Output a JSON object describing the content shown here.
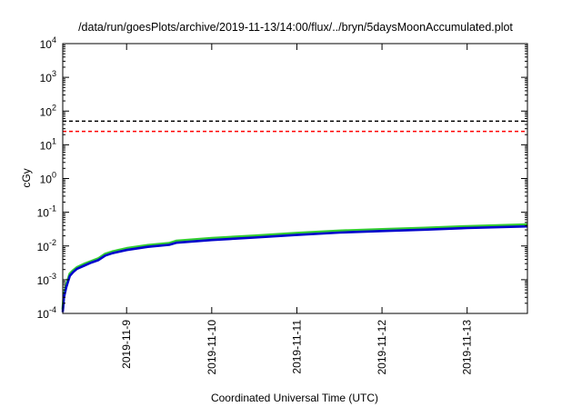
{
  "chart_data": {
    "type": "line",
    "title": "/data/run/goesPlots/archive/2019-11-13/14:00/flux/../bryn/5daysMoonAccumulated.plot",
    "xlabel": "Coordinated Universal Time (UTC)",
    "ylabel": "cGy",
    "yscale": "log",
    "ylim": [
      0.0001,
      10000
    ],
    "xlim": [
      "2019-11-08T06:00",
      "2019-11-13T17:00"
    ],
    "y_ticks": [
      {
        "value": 0.0001,
        "mant": "10",
        "exp": "-4"
      },
      {
        "value": 0.001,
        "mant": "10",
        "exp": "-3"
      },
      {
        "value": 0.01,
        "mant": "10",
        "exp": "-2"
      },
      {
        "value": 0.1,
        "mant": "10",
        "exp": "-1"
      },
      {
        "value": 1,
        "mant": "10",
        "exp": "0"
      },
      {
        "value": 10,
        "mant": "10",
        "exp": "1"
      },
      {
        "value": 100,
        "mant": "10",
        "exp": "2"
      },
      {
        "value": 1000,
        "mant": "10",
        "exp": "3"
      },
      {
        "value": 10000,
        "mant": "10",
        "exp": "4"
      }
    ],
    "x_ticks": [
      {
        "value": "2019-11-09",
        "label": "2019-11-9"
      },
      {
        "value": "2019-11-10",
        "label": "2019-11-10"
      },
      {
        "value": "2019-11-11",
        "label": "2019-11-11"
      },
      {
        "value": "2019-11-12",
        "label": "2019-11-12"
      },
      {
        "value": "2019-11-13",
        "label": "2019-11-13"
      }
    ],
    "reference_lines": [
      {
        "y": 50,
        "color": "#000000",
        "style": "dashed"
      },
      {
        "y": 25,
        "color": "#ff0000",
        "style": "dashed"
      }
    ],
    "grid": false,
    "series": [
      {
        "color": "#33cc33",
        "x": [
          "2019-11-08T06:00",
          "2019-11-08T06:20",
          "2019-11-08T07:00",
          "2019-11-08T08:00",
          "2019-11-08T09:00",
          "2019-11-08T10:00",
          "2019-11-08T12:00",
          "2019-11-08T14:00",
          "2019-11-08T16:00",
          "2019-11-08T18:00",
          "2019-11-08T20:00",
          "2019-11-09T00:00",
          "2019-11-09T06:00",
          "2019-11-09T12:00",
          "2019-11-09T14:00",
          "2019-11-10T00:00",
          "2019-11-10T12:00",
          "2019-11-11T00:00",
          "2019-11-11T12:00",
          "2019-11-12T00:00",
          "2019-11-12T12:00",
          "2019-11-13T00:00",
          "2019-11-13T17:00"
        ],
        "y": [
          0.00013,
          0.00035,
          0.0007,
          0.0015,
          0.0019,
          0.0023,
          0.0029,
          0.0035,
          0.0042,
          0.0058,
          0.0068,
          0.0085,
          0.0105,
          0.012,
          0.014,
          0.017,
          0.02,
          0.024,
          0.028,
          0.031,
          0.034,
          0.038,
          0.043
        ]
      },
      {
        "color": "#0000cc",
        "x": [
          "2019-11-08T06:00",
          "2019-11-08T06:20",
          "2019-11-08T07:00",
          "2019-11-08T08:00",
          "2019-11-08T09:00",
          "2019-11-08T10:00",
          "2019-11-08T12:00",
          "2019-11-08T14:00",
          "2019-11-08T16:00",
          "2019-11-08T18:00",
          "2019-11-08T20:00",
          "2019-11-09T00:00",
          "2019-11-09T06:00",
          "2019-11-09T12:00",
          "2019-11-09T14:00",
          "2019-11-10T00:00",
          "2019-11-10T12:00",
          "2019-11-11T00:00",
          "2019-11-11T12:00",
          "2019-11-12T00:00",
          "2019-11-12T12:00",
          "2019-11-13T00:00",
          "2019-11-13T17:00"
        ],
        "y": [
          0.00011,
          0.0003,
          0.0006,
          0.0013,
          0.0017,
          0.0021,
          0.0026,
          0.0032,
          0.0038,
          0.0052,
          0.0061,
          0.0076,
          0.0094,
          0.0108,
          0.0125,
          0.015,
          0.0178,
          0.0213,
          0.025,
          0.0278,
          0.0305,
          0.034,
          0.038
        ]
      }
    ]
  }
}
